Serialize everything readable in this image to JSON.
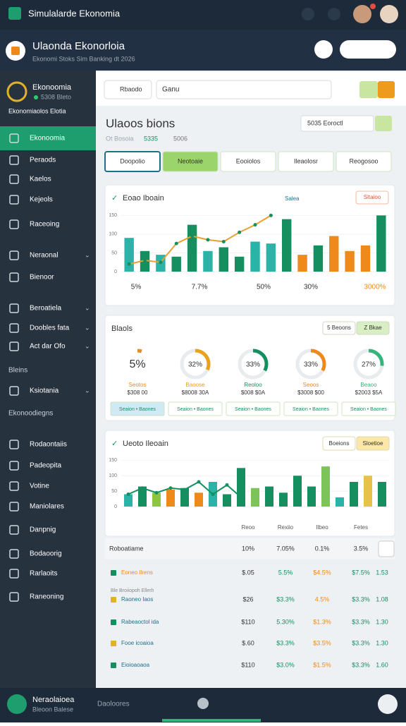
{
  "topbar": {
    "title": "Simulalarde Ekonomia"
  },
  "header": {
    "title": "Ulaonda Ekonorloia",
    "subtitle": "Ekonomi Stoks Sim Banking dt 2026"
  },
  "sidebar": {
    "profile": {
      "name": "Ekonoomia",
      "status": "5308 Bleto"
    },
    "caption": "Ekonomiaolos Elotia",
    "items": [
      {
        "label": "Ekonoomia",
        "active": true
      },
      {
        "label": "Peraods"
      },
      {
        "label": "Kaelos"
      },
      {
        "label": "Kejeols"
      },
      {
        "label": "Raceoing"
      },
      {
        "label": "Neraonal",
        "expand": true
      },
      {
        "label": "Bienoor"
      },
      {
        "label": "Beroatiela",
        "expand": true
      },
      {
        "label": "Doobles fata",
        "expand": true
      },
      {
        "label": "Act dar Ofo",
        "expand": true
      },
      {
        "label": "Bleins",
        "section": true
      },
      {
        "label": "Ksiotania",
        "expand": true
      },
      {
        "label": "Ekonoodiegns",
        "section": true
      },
      {
        "label": "Rodaontaiis"
      },
      {
        "label": "Padeopita"
      },
      {
        "label": "Votine"
      },
      {
        "label": "Maniolares"
      },
      {
        "label": "Danpnig"
      },
      {
        "label": "Bodaoorig"
      },
      {
        "label": "Rarlaoits"
      },
      {
        "label": "Raneoning"
      }
    ]
  },
  "toolbar": {
    "search": "Rbaodo",
    "query": "Ganu"
  },
  "overview": {
    "title": "Ulaoos bions",
    "subtitle": "Ot Bosoia",
    "stats": [
      "5335",
      "5006"
    ],
    "period": "5035 Eoroctl"
  },
  "tabs": [
    "Doopolio",
    "Neotoaie",
    "Eooiolos",
    "Ileaolosr",
    "Reogosoo"
  ],
  "sales_chart": {
    "title": "Eoao Iboain",
    "action": "Sltaioo",
    "line_name": "Salea",
    "ylim": [
      0,
      160
    ],
    "yticks": [
      0,
      50,
      100,
      150
    ],
    "bars": [
      {
        "value": 90,
        "color": "#2ab3a6"
      },
      {
        "value": 55,
        "color": "#168f60"
      },
      {
        "value": 45,
        "color": "#2ab3a6"
      },
      {
        "value": 40,
        "color": "#168f60"
      },
      {
        "value": 125,
        "color": "#168f60"
      },
      {
        "value": 55,
        "color": "#2ab3a6"
      },
      {
        "value": 65,
        "color": "#168f60"
      },
      {
        "value": 40,
        "color": "#168f60"
      },
      {
        "value": 80,
        "color": "#2ab3a6"
      },
      {
        "value": 75,
        "color": "#2ab3a6"
      },
      {
        "value": 140,
        "color": "#168f60"
      },
      {
        "value": 45,
        "color": "#ee8a1c"
      },
      {
        "value": 70,
        "color": "#168f60"
      },
      {
        "value": 95,
        "color": "#ee8a1c"
      },
      {
        "value": 55,
        "color": "#ee8a1c"
      },
      {
        "value": 70,
        "color": "#ee8a1c"
      },
      {
        "value": 150,
        "color": "#168f60"
      }
    ],
    "line": [
      20,
      30,
      25,
      75,
      95,
      85,
      80,
      105,
      125,
      150,
      null,
      null,
      null,
      null,
      null,
      null,
      null
    ],
    "line_color": "#e8a030",
    "footer": [
      "5%",
      "7.7%",
      "50%",
      "30%",
      "3000%"
    ]
  },
  "balances": {
    "title": "Blaols",
    "buttons": [
      "5 Beoons",
      "Z Bkae"
    ],
    "items": [
      {
        "value": 5,
        "value_label": "5%",
        "name": "Seotos",
        "amount": "$308 00",
        "button": "Seaion • Baones",
        "color": "#ee8a1c"
      },
      {
        "value": 32,
        "value_label": "32%",
        "name": "Baoose",
        "amount": "$8008 30A",
        "button": "Seaion • Baones",
        "color": "#e9a21c"
      },
      {
        "value": 33,
        "value_label": "33%",
        "name": "Reoloo",
        "amount": "$008 $0A",
        "button": "Seaion • Baones",
        "color": "#168f60"
      },
      {
        "value": 33,
        "value_label": "33%",
        "name": "Seoos",
        "amount": "$3008 $00",
        "button": "Seaion • Baones",
        "color": "#ee8a1c"
      },
      {
        "value": 27,
        "value_label": "27%",
        "name": "Beaoo",
        "amount": "$2003 $5A",
        "button": "Seaion • Baones",
        "color": "#35b57a"
      }
    ]
  },
  "volume_chart": {
    "title": "Ueoto Ileoain",
    "buttons": [
      "Boeions",
      "Sloetioe"
    ],
    "ylim": [
      0,
      160
    ],
    "yticks": [
      0,
      50,
      100,
      150
    ],
    "bars": [
      {
        "value": 40,
        "color": "#2ab3a6"
      },
      {
        "value": 65,
        "color": "#168f60"
      },
      {
        "value": 45,
        "color": "#8cc63f"
      },
      {
        "value": 55,
        "color": "#ee8a1c"
      },
      {
        "value": 60,
        "color": "#168f60"
      },
      {
        "value": 45,
        "color": "#ee8a1c"
      },
      {
        "value": 80,
        "color": "#2ab3a6"
      },
      {
        "value": 40,
        "color": "#168f60"
      },
      {
        "value": 125,
        "color": "#168f60"
      },
      {
        "value": 60,
        "color": "#7cc35a"
      },
      {
        "value": 65,
        "color": "#168f60"
      },
      {
        "value": 45,
        "color": "#168f60"
      },
      {
        "value": 100,
        "color": "#168f60"
      },
      {
        "value": 65,
        "color": "#168f60"
      },
      {
        "value": 130,
        "color": "#7cc35a"
      },
      {
        "value": 30,
        "color": "#2ab3a6"
      },
      {
        "value": 80,
        "color": "#168f60"
      },
      {
        "value": 100,
        "color": "#e6c24a"
      },
      {
        "value": 80,
        "color": "#168f60"
      }
    ],
    "line": [
      40,
      60,
      45,
      60,
      55,
      80,
      40,
      70,
      30,
      null,
      null,
      null,
      null,
      null,
      null,
      null,
      null,
      null,
      null
    ],
    "line_color": "#168f60"
  },
  "table": {
    "columns": [
      "Reoo",
      "Rexiio",
      "Ilbeo",
      "Fetes"
    ],
    "summary": {
      "label": "Roboatiame",
      "cells": [
        "10%",
        "7.05%",
        "0.1%",
        "3.5%"
      ]
    },
    "note": "Ble Broiiopoh Ellerh",
    "rows": [
      {
        "label": "Eoneo Ilrens",
        "cells": [
          "$.05",
          "5.5%",
          "$4.5%",
          "$7.5%",
          "1.53"
        ]
      },
      {
        "label": "Raoneo Iaos",
        "cells": [
          "$26",
          "$3.3%",
          "4.5%",
          "$3.3%",
          "1.08"
        ]
      },
      {
        "label": "Rabeaoctol ida",
        "cells": [
          "$110",
          "5.30%",
          "$1.3%",
          "$3.3%",
          "1.30"
        ]
      },
      {
        "label": "Fooe icoaioa",
        "cells": [
          "$.60",
          "$3.3%",
          "$3.5%",
          "$3.3%",
          "1.30"
        ]
      },
      {
        "label": "Eioioaoaoa",
        "cells": [
          "$110",
          "$3.0%",
          "$1.5%",
          "$3.3%",
          "1.60"
        ]
      }
    ]
  },
  "footer": {
    "title": "Neraolaioea",
    "subtitle": "Bleoon Balese",
    "center": "Daoloores"
  }
}
